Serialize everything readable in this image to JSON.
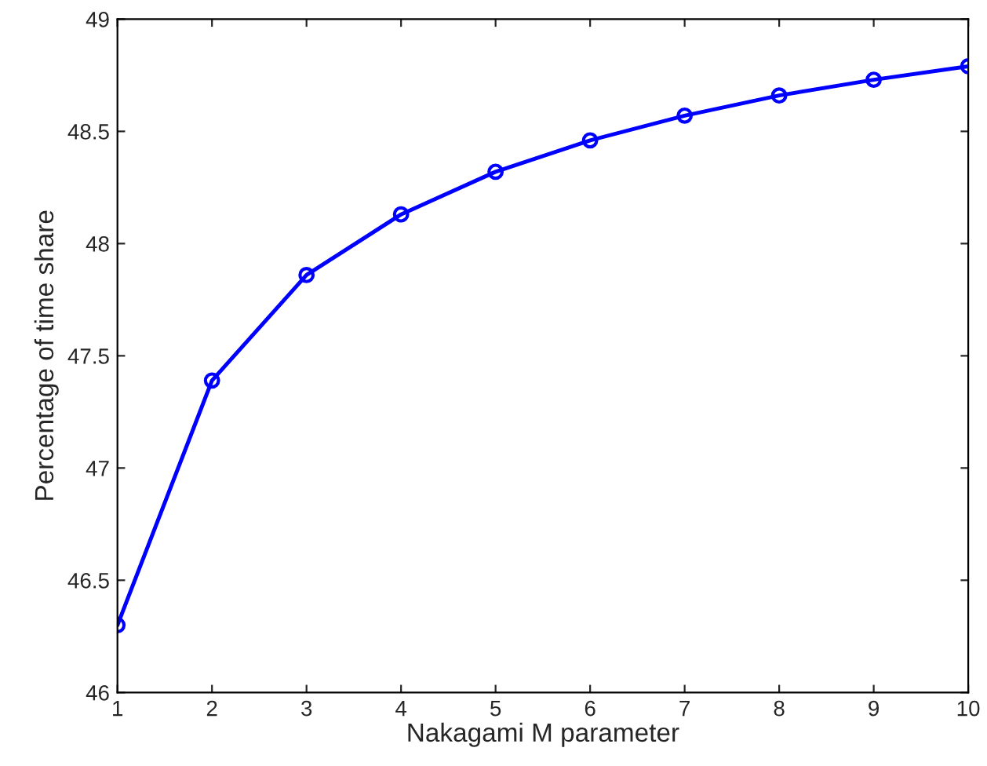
{
  "chart_data": {
    "type": "line",
    "xlabel": "Nakagami M parameter",
    "ylabel": "Percentage of time share",
    "x": [
      1,
      2,
      3,
      4,
      5,
      6,
      7,
      8,
      9,
      10
    ],
    "series": [
      {
        "color": "#0000ff",
        "values": [
          46.3,
          47.39,
          47.86,
          48.13,
          48.32,
          48.46,
          48.57,
          48.66,
          48.73,
          48.79
        ]
      }
    ],
    "xlim": [
      1,
      10
    ],
    "xticks": [
      1,
      2,
      3,
      4,
      5,
      6,
      7,
      8,
      9,
      10
    ],
    "ylim": [
      46,
      49
    ],
    "yticks": [
      46,
      46.5,
      47,
      47.5,
      48,
      48.5,
      49
    ],
    "grid": false,
    "legend": false,
    "marker": "circle",
    "line_style": "solid"
  }
}
